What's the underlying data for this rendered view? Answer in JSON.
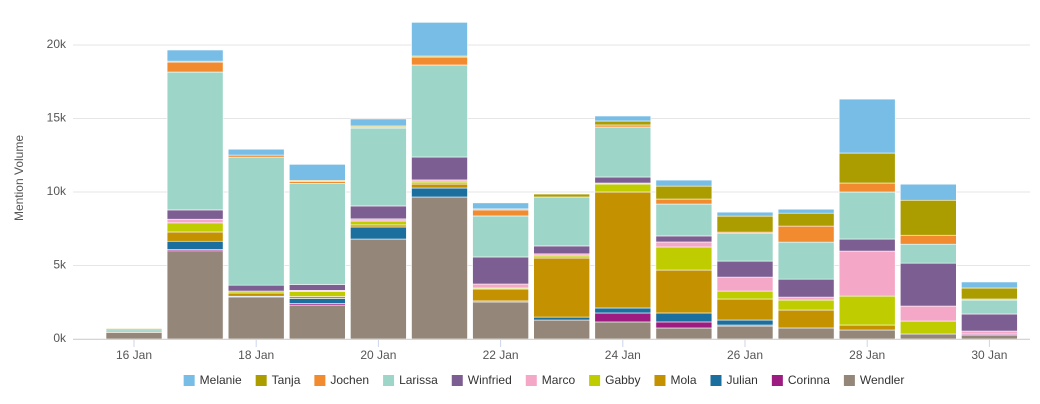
{
  "chart_data": {
    "type": "bar",
    "stacked": true,
    "y_label": "Mention Volume",
    "categories": [
      "16 Jan",
      null,
      "18 Jan",
      null,
      "20 Jan",
      null,
      "22 Jan",
      null,
      "24 Jan",
      null,
      "26 Jan",
      null,
      "28 Jan",
      null,
      "30 Jan"
    ],
    "ylim": [
      0,
      22000
    ],
    "yticks": [
      {
        "value": 0,
        "label": "0k"
      },
      {
        "value": 5000,
        "label": "5k"
      },
      {
        "value": 10000,
        "label": "10k"
      },
      {
        "value": 15000,
        "label": "15k"
      },
      {
        "value": 20000,
        "label": "20k"
      }
    ],
    "grid": true,
    "legend": "bottom",
    "series": [
      {
        "name": "Wendler",
        "color": "#94877a",
        "values": [
          450,
          6000,
          2860,
          2310,
          6800,
          9660,
          2520,
          1290,
          1160,
          750,
          880,
          750,
          610,
          340,
          270
        ]
      },
      {
        "name": "Corinna",
        "color": "#9c1c82",
        "values": [
          0,
          100,
          0,
          100,
          0,
          0,
          70,
          0,
          610,
          410,
          70,
          0,
          0,
          0,
          70
        ]
      },
      {
        "name": "Julian",
        "color": "#1b6f9e",
        "values": [
          0,
          550,
          50,
          350,
          820,
          610,
          0,
          200,
          340,
          610,
          340,
          0,
          0,
          0,
          0
        ]
      },
      {
        "name": "Mola",
        "color": "#c49200",
        "values": [
          80,
          630,
          220,
          140,
          140,
          270,
          810,
          4020,
          7890,
          2920,
          1430,
          1220,
          340,
          0,
          0
        ]
      },
      {
        "name": "Gabby",
        "color": "#bfcc00",
        "values": [
          0,
          620,
          130,
          340,
          270,
          140,
          70,
          140,
          540,
          1570,
          540,
          680,
          1970,
          880,
          0
        ]
      },
      {
        "name": "Marco",
        "color": "#f5a7c7",
        "values": [
          0,
          250,
          0,
          70,
          140,
          140,
          270,
          140,
          70,
          340,
          950,
          200,
          3060,
          1020,
          200
        ]
      },
      {
        "name": "Winfried",
        "color": "#7d5e92",
        "values": [
          0,
          630,
          400,
          400,
          880,
          1560,
          1840,
          540,
          410,
          410,
          1090,
          1220,
          820,
          2920,
          1160
        ]
      },
      {
        "name": "Larissa",
        "color": "#9dd6c8",
        "values": [
          100,
          9380,
          8710,
          6870,
          5300,
          6260,
          2790,
          3330,
          3400,
          2170,
          1900,
          2520,
          3200,
          1290,
          950
        ]
      },
      {
        "name": "Jochen",
        "color": "#f28b30",
        "values": [
          0,
          680,
          140,
          140,
          70,
          540,
          410,
          0,
          140,
          340,
          70,
          1090,
          610,
          610,
          70
        ]
      },
      {
        "name": "Tanja",
        "color": "#ab9d00",
        "values": [
          80,
          60,
          0,
          70,
          70,
          70,
          70,
          200,
          270,
          880,
          1090,
          880,
          2040,
          2380,
          750
        ]
      },
      {
        "name": "Melanie",
        "color": "#77bde6",
        "values": [
          0,
          760,
          400,
          1090,
          480,
          2290,
          410,
          0,
          340,
          410,
          270,
          270,
          3670,
          1090,
          410
        ]
      }
    ]
  }
}
